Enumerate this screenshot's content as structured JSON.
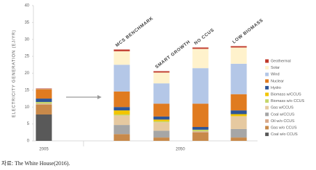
{
  "chart_data": {
    "type": "stacked_bar",
    "y_label": "ELECTRICITY GENERATION (EJ/YR)",
    "categories": [
      null,
      "MCS BENCHMARK",
      "SMART GROWTH",
      "NO CCUS",
      "LOW BIOMASS"
    ],
    "x_groups": [
      "2005",
      "2050"
    ],
    "ylim": [
      0,
      40
    ],
    "yticks": [
      0,
      5,
      10,
      15,
      20,
      25,
      30,
      35,
      40
    ],
    "series": [
      {
        "name": "Coal w/o CCUS",
        "color": "#595959",
        "values": [
          7.8,
          0,
          0,
          0,
          0
        ]
      },
      {
        "name": "Gas w/o CCUS",
        "color": "#c8894a",
        "values": [
          2.9,
          2,
          1,
          2.5,
          1
        ]
      },
      {
        "name": "Oil w/o CCUS",
        "color": "#d9a98a",
        "values": [
          0.3,
          0,
          0,
          0.3,
          0
        ]
      },
      {
        "name": "Coal w/CCUS",
        "color": "#a6a6a6",
        "values": [
          0,
          2.7,
          2,
          0,
          2.5
        ]
      },
      {
        "name": "Gas w/CCUS",
        "color": "#e6c9a0",
        "values": [
          0,
          2.8,
          2.5,
          0,
          3.8
        ]
      },
      {
        "name": "Biomass w/o CCUS",
        "color": "#c5d66b",
        "values": [
          0.5,
          0.3,
          0.3,
          0.5,
          0
        ]
      },
      {
        "name": "Biomass w/CCUS",
        "color": "#f2c500",
        "values": [
          0,
          1.2,
          0.5,
          0,
          0.6
        ]
      },
      {
        "name": "Hydro",
        "color": "#2e5597",
        "values": [
          1.0,
          1.0,
          0.9,
          0.8,
          1.1
        ]
      },
      {
        "name": "Nuclear",
        "color": "#e07b20",
        "values": [
          2.8,
          4.6,
          3.8,
          6.9,
          4.8
        ]
      },
      {
        "name": "Wind",
        "color": "#b4c7e7",
        "values": [
          0.1,
          7.9,
          6,
          10.5,
          9
        ]
      },
      {
        "name": "Solar",
        "color": "#fff2cc",
        "values": [
          0,
          4,
          3.2,
          5.7,
          4.8
        ]
      },
      {
        "name": "Geothermal",
        "color": "#c0392b",
        "values": [
          0.1,
          0.5,
          0.4,
          0.4,
          0.4
        ]
      }
    ]
  },
  "source": "자료: The White House(2016)."
}
